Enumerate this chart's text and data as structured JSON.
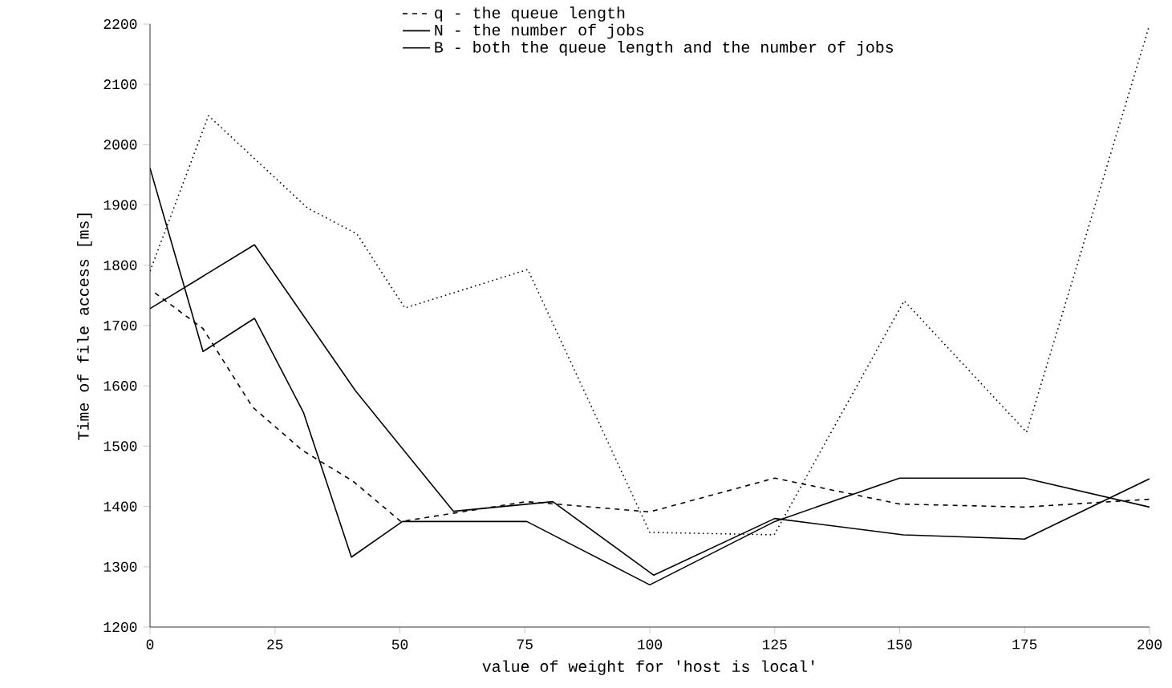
{
  "chart_data": {
    "type": "line",
    "xlabel": "value of weight for 'host is local'",
    "ylabel": "Time of file access [ms]",
    "xlim": [
      0,
      200
    ],
    "xticks": [
      0,
      25,
      50,
      75,
      100,
      125,
      150,
      175,
      200
    ],
    "ylim": [
      1200,
      2200
    ],
    "yticks": [
      1200,
      1300,
      1400,
      1500,
      1600,
      1700,
      1800,
      1900,
      2000,
      2100,
      2200
    ],
    "legend": "top",
    "marker": "none",
    "series": [
      {
        "name": "q - the queue length",
        "color": "#000000",
        "line_style": "dashed",
        "x": [
          1,
          10.6,
          20.5,
          30.5,
          40.6,
          50.2,
          75.3,
          100,
          125,
          150,
          175,
          200
        ],
        "values": [
          1754,
          1695,
          1565,
          1493,
          1442,
          1375,
          1408,
          1391,
          1447,
          1404,
          1399,
          1412
        ]
      },
      {
        "name": "N - the number of jobs",
        "color": "#000000",
        "line_style": "solid",
        "x": [
          0,
          10.6,
          20.9,
          30.7,
          40.3,
          50.5,
          75.4,
          100,
          125,
          150,
          175,
          200
        ],
        "values": [
          1961,
          1657,
          1712,
          1556,
          1316,
          1375,
          1375,
          1270,
          1375,
          1447,
          1447,
          1399
        ]
      },
      {
        "name": "B - both the queue length and the number of jobs",
        "color": "#000000",
        "line_style": "solid",
        "x": [
          0,
          20.9,
          41.1,
          60.7,
          80.6,
          100.8,
          125,
          150.7,
          175,
          200
        ],
        "values": [
          1728,
          1834,
          1592,
          1392,
          1408,
          1286,
          1380,
          1353,
          1346,
          1446
        ]
      },
      {
        "color": "#000000",
        "line_style": "dotted",
        "x": [
          0,
          11.7,
          31.5,
          41.4,
          51,
          75.6,
          100,
          124.9,
          150.9,
          175.4,
          199.8
        ],
        "values": [
          1790,
          2048,
          1895,
          1852,
          1729,
          1793,
          1357,
          1353,
          1741,
          1523,
          2193
        ]
      }
    ]
  }
}
